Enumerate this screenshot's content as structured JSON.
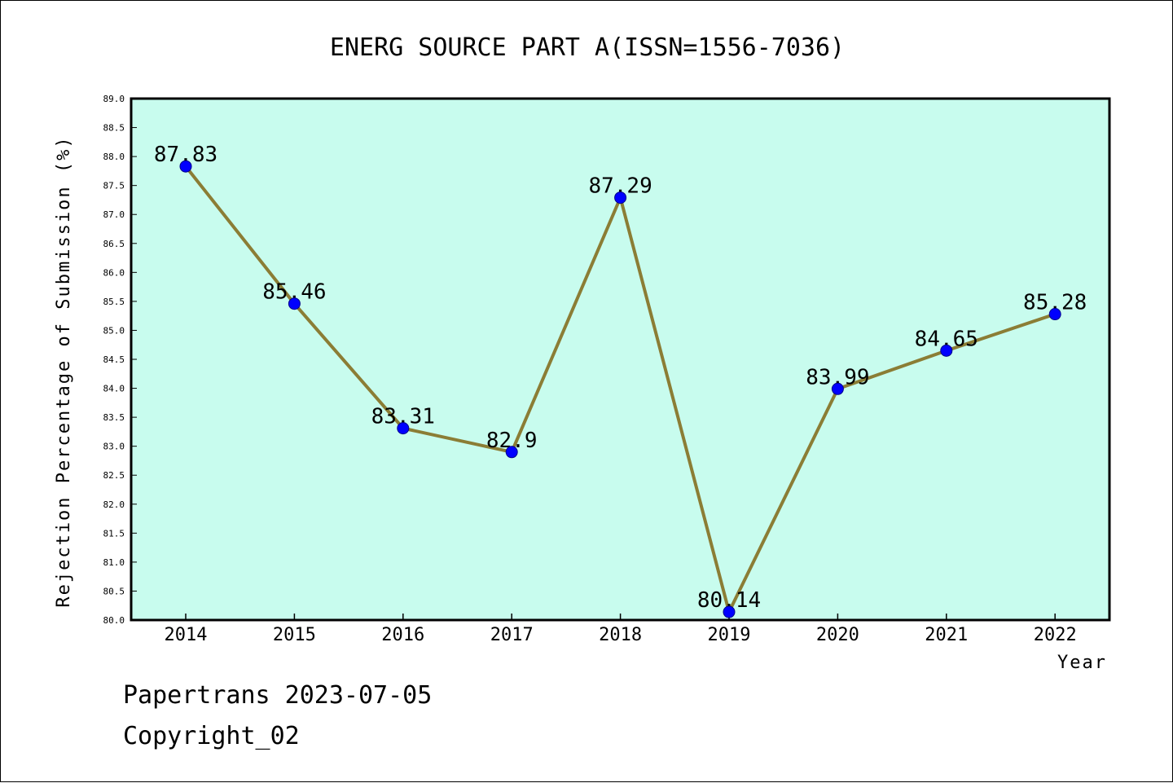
{
  "chart_data": {
    "type": "line",
    "title": "ENERG SOURCE PART A(ISSN=1556-7036)",
    "xlabel": "Year",
    "ylabel": "Rejection Percentage of Submission (%)",
    "ylim": [
      80.0,
      89.0
    ],
    "yticks": [
      "80.0",
      "80.5",
      "81.0",
      "81.5",
      "82.0",
      "82.5",
      "83.0",
      "83.5",
      "84.0",
      "84.5",
      "85.0",
      "85.5",
      "86.0",
      "86.5",
      "87.0",
      "87.5",
      "88.0",
      "88.5",
      "89.0"
    ],
    "categories": [
      "2014",
      "2015",
      "2016",
      "2017",
      "2018",
      "2019",
      "2020",
      "2021",
      "2022"
    ],
    "values": [
      87.83,
      85.46,
      83.31,
      82.9,
      87.29,
      80.14,
      83.99,
      84.65,
      85.28
    ],
    "data_labels": [
      "87.83",
      "85.46",
      "83.31",
      "82.9",
      "87.29",
      "80.14",
      "83.99",
      "84.65",
      "85.28"
    ],
    "grid": false,
    "colors": {
      "plot_background": "#c8fcee",
      "line": "#8b7d35",
      "marker": "#0000ff"
    }
  },
  "footer": {
    "line1": "Papertrans 2023-07-05",
    "line2": "Copyright_02"
  }
}
